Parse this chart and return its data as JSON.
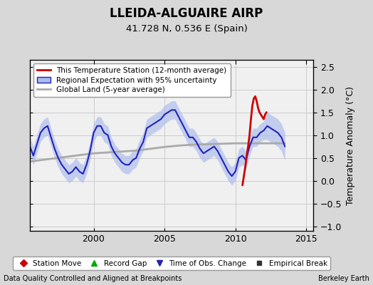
{
  "title": "LLEIDA-ALGUAIRE AIRP",
  "subtitle": "41.728 N, 0.536 E (Spain)",
  "ylabel": "Temperature Anomaly (°C)",
  "xlabel_left": "Data Quality Controlled and Aligned at Breakpoints",
  "xlabel_right": "Berkeley Earth",
  "ylim": [
    -1.1,
    2.65
  ],
  "xlim": [
    1995.5,
    2015.5
  ],
  "xticks": [
    2000,
    2005,
    2010,
    2015
  ],
  "yticks": [
    -1,
    -0.5,
    0,
    0.5,
    1,
    1.5,
    2,
    2.5
  ],
  "bg_color": "#d8d8d8",
  "plot_bg_color": "#f0f0f0",
  "legend1_items": [
    {
      "label": "This Temperature Station (12-month average)",
      "color": "#cc0000"
    },
    {
      "label": "Regional Expectation with 95% uncertainty",
      "color": "#2222bb"
    },
    {
      "label": "Global Land (5-year average)",
      "color": "#aaaaaa"
    }
  ],
  "legend2_items": [
    {
      "label": "Station Move",
      "marker": "D",
      "color": "#cc0000"
    },
    {
      "label": "Record Gap",
      "marker": "^",
      "color": "#00aa00"
    },
    {
      "label": "Time of Obs. Change",
      "marker": "v",
      "color": "#2222bb"
    },
    {
      "label": "Empirical Break",
      "marker": "s",
      "color": "#333333"
    }
  ],
  "blue_x": [
    1995.5,
    1995.75,
    1996.0,
    1996.25,
    1996.5,
    1996.75,
    1997.0,
    1997.25,
    1997.5,
    1997.75,
    1998.0,
    1998.25,
    1998.5,
    1998.75,
    1999.0,
    1999.25,
    1999.5,
    1999.75,
    2000.0,
    2000.25,
    2000.5,
    2000.75,
    2001.0,
    2001.25,
    2001.5,
    2001.75,
    2002.0,
    2002.25,
    2002.5,
    2002.75,
    2003.0,
    2003.25,
    2003.5,
    2003.75,
    2004.0,
    2004.25,
    2004.5,
    2004.75,
    2005.0,
    2005.25,
    2005.5,
    2005.75,
    2006.0,
    2006.25,
    2006.5,
    2006.75,
    2007.0,
    2007.25,
    2007.5,
    2007.75,
    2008.0,
    2008.25,
    2008.5,
    2008.75,
    2009.0,
    2009.25,
    2009.5,
    2009.75,
    2010.0,
    2010.25,
    2010.5,
    2010.75,
    2011.0,
    2011.25,
    2011.5,
    2011.75,
    2012.0,
    2012.25,
    2012.5,
    2012.75,
    2013.0,
    2013.25,
    2013.5
  ],
  "blue_y": [
    0.75,
    0.55,
    0.8,
    1.05,
    1.15,
    1.2,
    0.95,
    0.7,
    0.5,
    0.35,
    0.25,
    0.15,
    0.2,
    0.3,
    0.2,
    0.15,
    0.35,
    0.65,
    1.05,
    1.2,
    1.2,
    1.05,
    1.0,
    0.75,
    0.6,
    0.5,
    0.4,
    0.35,
    0.35,
    0.45,
    0.5,
    0.7,
    0.85,
    1.15,
    1.2,
    1.25,
    1.3,
    1.35,
    1.45,
    1.5,
    1.55,
    1.55,
    1.4,
    1.25,
    1.1,
    0.95,
    0.95,
    0.85,
    0.7,
    0.6,
    0.65,
    0.7,
    0.75,
    0.65,
    0.5,
    0.35,
    0.2,
    0.1,
    0.2,
    0.5,
    0.55,
    0.45,
    0.75,
    0.95,
    0.95,
    1.05,
    1.1,
    1.2,
    1.15,
    1.1,
    1.05,
    0.95,
    0.75
  ],
  "blue_upper": [
    0.95,
    0.75,
    1.0,
    1.25,
    1.35,
    1.4,
    1.15,
    0.9,
    0.7,
    0.55,
    0.45,
    0.35,
    0.4,
    0.5,
    0.4,
    0.35,
    0.55,
    0.85,
    1.25,
    1.4,
    1.4,
    1.25,
    1.2,
    0.95,
    0.8,
    0.7,
    0.6,
    0.55,
    0.55,
    0.65,
    0.7,
    0.9,
    1.05,
    1.35,
    1.4,
    1.45,
    1.5,
    1.55,
    1.65,
    1.7,
    1.75,
    1.75,
    1.6,
    1.45,
    1.3,
    1.15,
    1.15,
    1.05,
    0.9,
    0.8,
    0.85,
    0.9,
    0.95,
    0.85,
    0.7,
    0.55,
    0.4,
    0.3,
    0.4,
    0.7,
    0.75,
    0.65,
    0.95,
    1.15,
    1.15,
    1.25,
    1.3,
    1.5,
    1.45,
    1.4,
    1.35,
    1.25,
    1.05
  ],
  "blue_lower": [
    0.55,
    0.35,
    0.6,
    0.85,
    0.95,
    1.0,
    0.75,
    0.5,
    0.3,
    0.15,
    0.05,
    -0.05,
    0.0,
    0.1,
    0.0,
    -0.05,
    0.15,
    0.45,
    0.85,
    1.0,
    1.0,
    0.85,
    0.8,
    0.55,
    0.4,
    0.3,
    0.2,
    0.15,
    0.15,
    0.25,
    0.3,
    0.5,
    0.65,
    0.95,
    1.0,
    1.05,
    1.1,
    1.15,
    1.25,
    1.3,
    1.35,
    1.35,
    1.2,
    1.05,
    0.9,
    0.75,
    0.75,
    0.65,
    0.5,
    0.4,
    0.45,
    0.5,
    0.55,
    0.45,
    0.3,
    0.15,
    0.0,
    -0.1,
    0.0,
    0.3,
    0.35,
    0.25,
    0.55,
    0.75,
    0.75,
    0.85,
    0.9,
    0.9,
    0.85,
    0.8,
    0.75,
    0.65,
    0.45
  ],
  "global_x": [
    1995.5,
    1996.0,
    1997.0,
    1998.0,
    1999.0,
    2000.0,
    2001.0,
    2002.0,
    2003.0,
    2004.0,
    2005.0,
    2006.0,
    2007.0,
    2008.0,
    2009.0,
    2010.0,
    2011.0,
    2012.0,
    2013.0,
    2013.5
  ],
  "global_y": [
    0.42,
    0.44,
    0.48,
    0.52,
    0.56,
    0.6,
    0.62,
    0.64,
    0.66,
    0.7,
    0.74,
    0.77,
    0.79,
    0.8,
    0.81,
    0.82,
    0.82,
    0.82,
    0.82,
    0.82
  ],
  "station_x": [
    2010.5,
    2010.6,
    2010.7,
    2010.8,
    2010.9,
    2011.0,
    2011.1,
    2011.2,
    2011.3,
    2011.4,
    2011.5,
    2011.6,
    2011.7,
    2011.8,
    2011.9,
    2012.0,
    2012.1,
    2012.2
  ],
  "station_y": [
    -0.1,
    0.1,
    0.3,
    0.55,
    0.75,
    1.0,
    1.35,
    1.65,
    1.8,
    1.85,
    1.75,
    1.6,
    1.5,
    1.45,
    1.4,
    1.35,
    1.45,
    1.5
  ]
}
